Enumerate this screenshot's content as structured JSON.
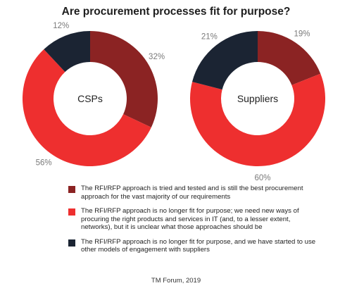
{
  "chart_data": {
    "type": "pie",
    "title": "Are procurement processes fit for purpose?",
    "series": [
      {
        "name": "CSPs",
        "values": [
          32,
          56,
          12
        ],
        "labels": [
          "32%",
          "56%",
          "12%"
        ]
      },
      {
        "name": "Suppliers",
        "values": [
          19,
          60,
          21
        ],
        "labels": [
          "19%",
          "60%",
          "21%"
        ]
      }
    ],
    "categories": [
      "The RFI/RFP approach is tried and tested and is still the best procurement approach for the vast majority of our requirements",
      "The RFI/RFP approach is no longer fit for purpose; we need new ways of procuring the right products and services in IT (and, to a lesser extent, networks), but it is unclear what those approaches should be",
      "The RFI/RFP approach is no longer fit for purpose, and we have started to use other models of engagement with suppliers"
    ],
    "colors": [
      "#8b2323",
      "#ee2f2f",
      "#1b2433"
    ],
    "legend_position": "bottom",
    "source": "TM Forum, 2019"
  }
}
